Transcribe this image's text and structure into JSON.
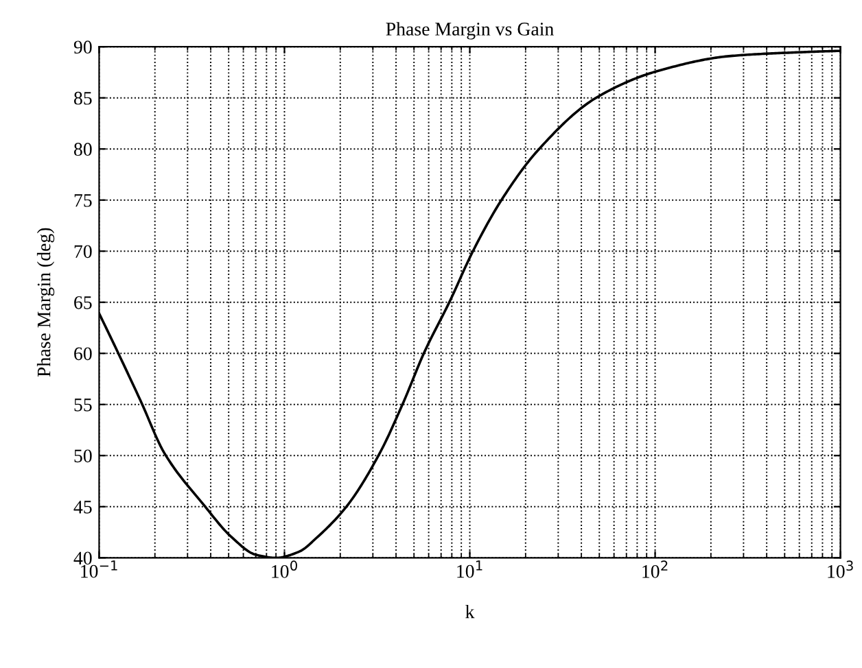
{
  "chart_data": {
    "type": "line",
    "title": "Phase Margin vs Gain",
    "xlabel": "k",
    "ylabel": "Phase Margin (deg)",
    "log": "x",
    "grid": true,
    "marker": "none",
    "line_style": "solid",
    "xlim": [
      0.1,
      1000
    ],
    "ylim": [
      40,
      90
    ],
    "xticks": [
      {
        "value": 0.1,
        "label": "10$^{−1}$"
      },
      {
        "value": 1,
        "label": "10$^{0}$"
      },
      {
        "value": 10,
        "label": "10$^{1}$"
      },
      {
        "value": 100,
        "label": "10$^{2}$"
      },
      {
        "value": 1000,
        "label": "10$^{3}$"
      }
    ],
    "yticks": [
      40,
      45,
      50,
      55,
      60,
      65,
      70,
      75,
      80,
      85,
      90
    ],
    "series": [
      {
        "color": "#000000",
        "x": [
          0.1,
          0.168,
          0.224,
          0.366,
          0.52,
          0.7,
          0.9,
          1.2,
          1.5,
          2.18,
          3.28,
          4.38,
          5.68,
          7.8,
          10.4,
          14.7,
          23.4,
          48,
          102,
          257,
          680,
          1000
        ],
        "values": [
          63.9,
          55.3,
          50.3,
          45.2,
          42.0,
          40.3,
          40.0,
          40.6,
          42.0,
          45.1,
          50.3,
          55.2,
          60.1,
          65.1,
          70.0,
          74.9,
          79.9,
          85.0,
          87.6,
          89.1,
          89.5,
          89.6
        ]
      }
    ]
  }
}
